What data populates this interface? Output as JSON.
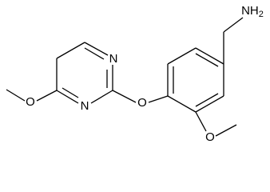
{
  "atoms": {
    "amine": {
      "main": "NH",
      "subscript": "2"
    },
    "pyrimidine_n_upper": "N",
    "pyrimidine_n_lower": "N",
    "ether_oxygen": "O",
    "methoxy_oxygen_right": "O",
    "methoxy_oxygen_left": "O"
  }
}
